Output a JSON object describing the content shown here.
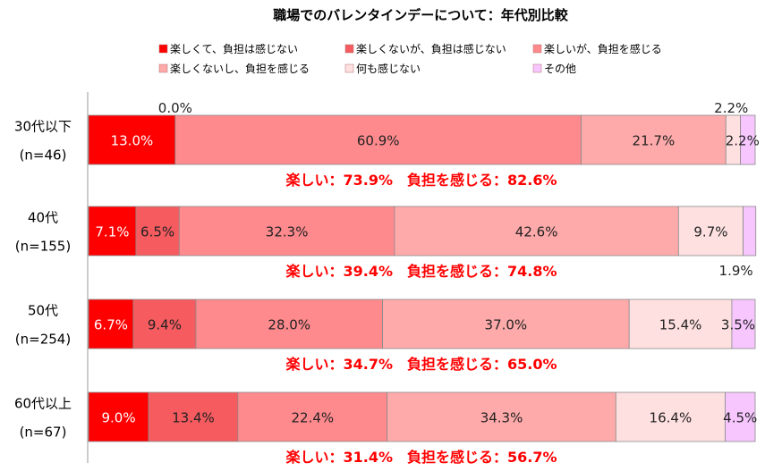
{
  "chart_data": {
    "type": "bar",
    "orientation": "horizontal",
    "stacked": true,
    "normalized": true,
    "title": "職場でのバレンタインデーについて：年代別比較",
    "xlim": [
      0,
      100
    ],
    "legend_position": "top",
    "categories": [
      {
        "label": "30代以下",
        "n": "(n=46)"
      },
      {
        "label": "40代",
        "n": "(n=155)"
      },
      {
        "label": "50代",
        "n": "(n=254)"
      },
      {
        "label": "60代以上",
        "n": "(n=67)"
      }
    ],
    "series": [
      {
        "name": "楽しくて、負担は感じない",
        "color": "#ff0000",
        "values": [
          13.0,
          7.1,
          6.7,
          9.0
        ]
      },
      {
        "name": "楽しくないが、負担は感じない",
        "color": "#f55b5f",
        "values": [
          0.0,
          6.5,
          9.4,
          13.4
        ]
      },
      {
        "name": "楽しいが、負担を感じる",
        "color": "#ff8a8e",
        "values": [
          60.9,
          32.3,
          28.0,
          22.4
        ]
      },
      {
        "name": "楽しくないし、負担を感じる",
        "color": "#ffaaaa",
        "values": [
          21.7,
          42.6,
          37.0,
          34.3
        ]
      },
      {
        "name": "何も感じない",
        "color": "#ffe0e0",
        "values": [
          2.2,
          9.7,
          15.4,
          16.4
        ]
      },
      {
        "name": "その他",
        "color": "#f7c6ff",
        "values": [
          2.2,
          1.9,
          3.5,
          4.5
        ]
      }
    ],
    "value_labels": [
      [
        "13.0%",
        "0.0%",
        "60.9%",
        "21.7%",
        "2.2%",
        "2.2%"
      ],
      [
        "7.1%",
        "6.5%",
        "32.3%",
        "42.6%",
        "9.7%",
        "1.9%"
      ],
      [
        "6.7%",
        "9.4%",
        "28.0%",
        "37.0%",
        "15.4%",
        "3.5%"
      ],
      [
        "9.0%",
        "13.4%",
        "22.4%",
        "34.3%",
        "16.4%",
        "4.5%"
      ]
    ],
    "summaries": [
      "楽しい：73.9%　負担を感じる：82.6%",
      "楽しい：39.4%　負担を感じる：74.8%",
      "楽しい：34.7%　負担を感じる：65.0%",
      "楽しい：31.4%　負担を感じる：56.7%"
    ]
  }
}
